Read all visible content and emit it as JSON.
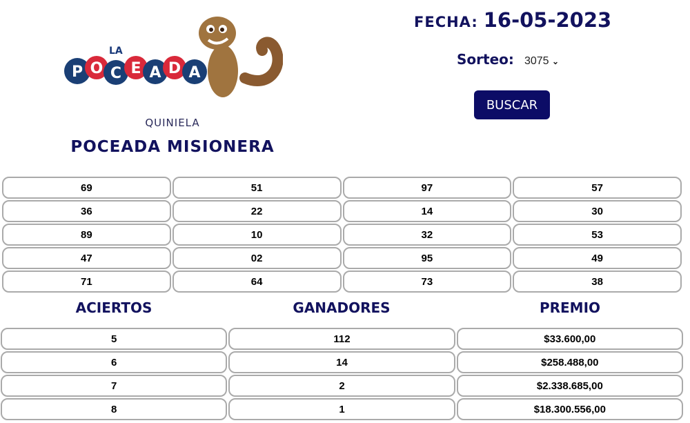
{
  "logo": {
    "text": "LA POCEADA"
  },
  "header": {
    "quiniela": "QUINIELA",
    "title": "POCEADA MISIONERA",
    "fecha_label": "FECHA:",
    "fecha_value": "16-05-2023",
    "sorteo_label": "Sorteo:",
    "sorteo_value": "3075",
    "buscar": "BUSCAR"
  },
  "numbers": [
    "69",
    "51",
    "97",
    "57",
    "36",
    "22",
    "14",
    "30",
    "89",
    "10",
    "32",
    "53",
    "47",
    "02",
    "95",
    "49",
    "71",
    "64",
    "73",
    "38"
  ],
  "prizes": {
    "headers": [
      "ACIERTOS",
      "GANADORES",
      "PREMIO"
    ],
    "rows": [
      [
        "5",
        "112",
        "$33.600,00"
      ],
      [
        "6",
        "14",
        "$258.488,00"
      ],
      [
        "7",
        "2",
        "$2.338.685,00"
      ],
      [
        "8",
        "1",
        "$18.300.556,00"
      ]
    ]
  },
  "colors": {
    "navy": "#12125e",
    "button": "#0c0c66",
    "cell_border": "#aaaaaa"
  }
}
